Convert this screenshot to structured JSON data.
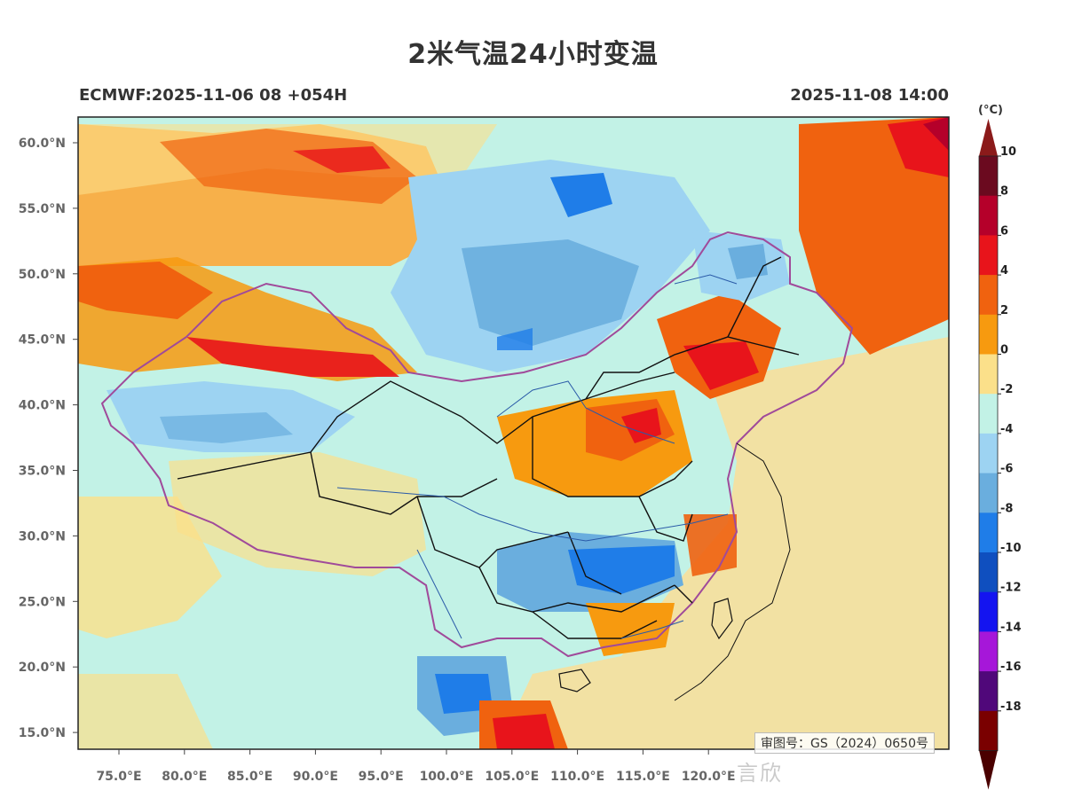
{
  "title": "2米气温24小时变温",
  "model_run": "ECMWF:2025-11-06 08 +054H",
  "valid_time": "2025-11-08 14:00",
  "colorbar": {
    "unit": "(°C)",
    "levels": [
      {
        "label": "10",
        "color": "#6b0a1f"
      },
      {
        "label": "8",
        "color": "#b5002a"
      },
      {
        "label": "6",
        "color": "#e8141b"
      },
      {
        "label": "4",
        "color": "#f0620f"
      },
      {
        "label": "2",
        "color": "#f79a0f"
      },
      {
        "label": "0",
        "color": "#fbe08a"
      },
      {
        "label": "-2",
        "color": "#c2f2e6"
      },
      {
        "label": "-4",
        "color": "#9dd3f2"
      },
      {
        "label": "-6",
        "color": "#6aaede"
      },
      {
        "label": "-8",
        "color": "#1f7de8"
      },
      {
        "label": "-10",
        "color": "#0f4fbf"
      },
      {
        "label": "-12",
        "color": "#1414f0"
      },
      {
        "label": "-14",
        "color": "#a617d9"
      },
      {
        "label": "-16",
        "color": "#50087a"
      },
      {
        "label": "-18",
        "color": "#7a0000"
      }
    ],
    "top_cap_color": "#8b1a1a",
    "bottom_cap_color": "#4a0000"
  },
  "axes": {
    "lat_labels": [
      "60.0°N",
      "55.0°N",
      "50.0°N",
      "45.0°N",
      "40.0°N",
      "35.0°N",
      "30.0°N",
      "25.0°N",
      "20.0°N",
      "15.0°N"
    ],
    "lon_labels": [
      "75.0°E",
      "80.0°E",
      "85.0°E",
      "90.0°E",
      "95.0°E",
      "100.0°E",
      "105.0°E",
      "110.0°E",
      "115.0°E",
      "120.0°E"
    ]
  },
  "map_approval": "审图号：GS（2024）0650号",
  "watermark": "言欣"
}
